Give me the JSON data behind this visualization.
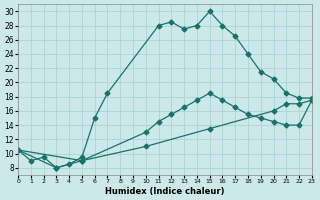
{
  "xlabel": "Humidex (Indice chaleur)",
  "bg_color": "#cce8e8",
  "grid_color": "#aad4d4",
  "line_color": "#1a7070",
  "xlim": [
    0,
    23
  ],
  "ylim": [
    7,
    31
  ],
  "xticks": [
    0,
    1,
    2,
    3,
    4,
    5,
    6,
    7,
    8,
    9,
    10,
    11,
    12,
    13,
    14,
    15,
    16,
    17,
    18,
    19,
    20,
    21,
    22,
    23
  ],
  "yticks": [
    8,
    10,
    12,
    14,
    16,
    18,
    20,
    22,
    24,
    26,
    28,
    30
  ],
  "line1_x": [
    0,
    1,
    2,
    3,
    4,
    5,
    6,
    7,
    11,
    12,
    13,
    14,
    15,
    16,
    17,
    18,
    19,
    20,
    21,
    22,
    23
  ],
  "line1_y": [
    10.5,
    9.0,
    9.5,
    8.0,
    8.5,
    9.5,
    15.0,
    18.5,
    28.0,
    28.5,
    27.5,
    28.0,
    30.0,
    28.0,
    26.5,
    24.0,
    21.5,
    20.5,
    18.5,
    17.8,
    17.8
  ],
  "line2_x": [
    0,
    3,
    5,
    10,
    11,
    12,
    13,
    14,
    15,
    16,
    17,
    18,
    19,
    20,
    21,
    22,
    23
  ],
  "line2_y": [
    10.5,
    8.0,
    9.0,
    13.0,
    14.5,
    15.5,
    16.5,
    17.5,
    18.5,
    17.5,
    16.5,
    15.5,
    15.0,
    14.5,
    14.0,
    14.0,
    17.5
  ],
  "line3_x": [
    0,
    5,
    10,
    15,
    20,
    21,
    22,
    23
  ],
  "line3_y": [
    10.5,
    9.0,
    11.0,
    13.5,
    16.0,
    17.0,
    17.0,
    17.5
  ]
}
